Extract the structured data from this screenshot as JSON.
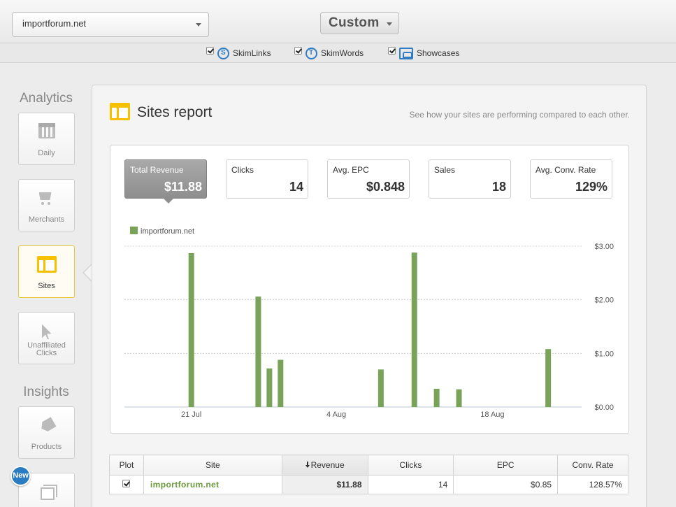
{
  "header": {
    "site_select": "importforum.net",
    "range_select": "Custom"
  },
  "filters": [
    {
      "label": "SkimLinks",
      "checked": true,
      "icon": "skimlinks-icon"
    },
    {
      "label": "SkimWords",
      "checked": true,
      "icon": "skimwords-icon"
    },
    {
      "label": "Showcases",
      "checked": true,
      "icon": "showcases-icon"
    }
  ],
  "nav": {
    "analytics_heading": "Analytics",
    "insights_heading": "Insights",
    "items": [
      {
        "label": "Daily",
        "icon": "calendar-icon"
      },
      {
        "label": "Merchants",
        "icon": "cart-icon"
      },
      {
        "label": "Sites",
        "icon": "sites-icon",
        "active": true
      },
      {
        "label": "Unaffiliated Clicks",
        "icon": "cursor-icon"
      },
      {
        "label": "Products",
        "icon": "tag-icon"
      },
      {
        "label": "",
        "icon": "layers-icon"
      }
    ],
    "new_badge": "New"
  },
  "report": {
    "title": "Sites report",
    "description": "See how your sites are performing compared to each other."
  },
  "metrics": [
    {
      "label": "Total Revenue",
      "value": "$11.88",
      "selected": true
    },
    {
      "label": "Clicks",
      "value": "14"
    },
    {
      "label": "Avg. EPC",
      "value": "$0.848"
    },
    {
      "label": "Sales",
      "value": "18"
    },
    {
      "label": "Avg. Conv. Rate",
      "value": "129%"
    }
  ],
  "chart_data": {
    "type": "bar",
    "series": [
      {
        "name": "importforum.net",
        "color": "#7aa35a",
        "x": [
          20,
          26,
          27,
          28,
          37,
          40,
          42,
          44,
          52
        ],
        "values": [
          2.87,
          2.06,
          0.72,
          0.88,
          0.7,
          2.88,
          0.34,
          0.33,
          1.08
        ]
      }
    ],
    "x_tick_labels": [
      {
        "day": 20,
        "label": "21 Jul"
      },
      {
        "day": 33,
        "label": "4 Aug"
      },
      {
        "day": 47,
        "label": "18 Aug"
      }
    ],
    "xlim": [
      14,
      55
    ],
    "ylim": [
      0,
      3
    ],
    "y_tick_labels": [
      "$0.00",
      "$1.00",
      "$2.00",
      "$3.00"
    ],
    "grid": true,
    "legend_position": "top-left"
  },
  "table": {
    "headers": {
      "plot": "Plot",
      "site": "Site",
      "revenue": "Revenue",
      "clicks": "Clicks",
      "epc": "EPC",
      "conv_rate": "Conv. Rate"
    },
    "rows": [
      {
        "plot": true,
        "site": "importforum.net",
        "revenue": "$11.88",
        "clicks": "14",
        "epc": "$0.85",
        "conv_rate": "128.57%"
      }
    ]
  }
}
